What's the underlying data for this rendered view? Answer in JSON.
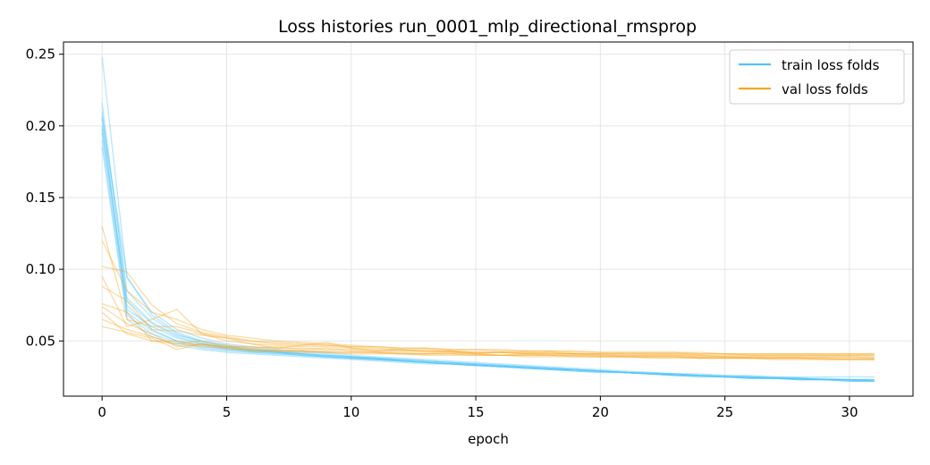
{
  "chart_data": {
    "type": "line",
    "title": "Loss histories run_0001_mlp_directional_rmsprop",
    "xlabel": "epoch",
    "ylabel": "",
    "xlim": [
      -1.55,
      32.55
    ],
    "ylim": [
      0.0115,
      0.2585
    ],
    "xticks": [
      0,
      5,
      10,
      15,
      20,
      25,
      30
    ],
    "yticks": [
      0.05,
      0.1,
      0.15,
      0.2,
      0.25
    ],
    "xtick_labels": [
      "0",
      "5",
      "10",
      "15",
      "20",
      "25",
      "30"
    ],
    "ytick_labels": [
      "0.05",
      "0.10",
      "0.15",
      "0.20",
      "0.25"
    ],
    "grid": true,
    "legend_position": "top-right",
    "colors": {
      "train": "#4fc3f7",
      "val": "#f5a623"
    },
    "legend": [
      {
        "label": "train loss folds",
        "group": "train"
      },
      {
        "label": "val loss folds",
        "group": "val"
      }
    ],
    "train_folds": [
      [
        0.248,
        0.094,
        0.07,
        0.058,
        0.052,
        0.048,
        0.046,
        0.044,
        0.043,
        0.042,
        0.04,
        0.039,
        0.038,
        0.037,
        0.036,
        0.035,
        0.034,
        0.033,
        0.032,
        0.031,
        0.03,
        0.029,
        0.028,
        0.027,
        0.027,
        0.026,
        0.026,
        0.025,
        0.025,
        0.025,
        0.025,
        0.025
      ],
      [
        0.216,
        0.08,
        0.063,
        0.054,
        0.05,
        0.047,
        0.045,
        0.043,
        0.042,
        0.041,
        0.039,
        0.038,
        0.037,
        0.036,
        0.035,
        0.034,
        0.033,
        0.032,
        0.031,
        0.03,
        0.029,
        0.028,
        0.028,
        0.027,
        0.026,
        0.026,
        0.025,
        0.025,
        0.024,
        0.024,
        0.023,
        0.023
      ],
      [
        0.205,
        0.095,
        0.068,
        0.056,
        0.05,
        0.046,
        0.044,
        0.043,
        0.041,
        0.04,
        0.039,
        0.038,
        0.037,
        0.036,
        0.035,
        0.034,
        0.033,
        0.032,
        0.031,
        0.03,
        0.029,
        0.028,
        0.027,
        0.027,
        0.026,
        0.025,
        0.025,
        0.024,
        0.024,
        0.023,
        0.023,
        0.023
      ],
      [
        0.2,
        0.075,
        0.058,
        0.05,
        0.046,
        0.044,
        0.043,
        0.042,
        0.041,
        0.04,
        0.039,
        0.038,
        0.037,
        0.036,
        0.035,
        0.034,
        0.033,
        0.032,
        0.031,
        0.03,
        0.029,
        0.028,
        0.027,
        0.027,
        0.026,
        0.025,
        0.025,
        0.024,
        0.024,
        0.023,
        0.023,
        0.022
      ],
      [
        0.195,
        0.072,
        0.06,
        0.052,
        0.048,
        0.045,
        0.043,
        0.042,
        0.041,
        0.039,
        0.038,
        0.037,
        0.036,
        0.035,
        0.034,
        0.033,
        0.032,
        0.031,
        0.031,
        0.03,
        0.029,
        0.028,
        0.027,
        0.026,
        0.026,
        0.025,
        0.024,
        0.024,
        0.023,
        0.023,
        0.022,
        0.022
      ],
      [
        0.19,
        0.068,
        0.055,
        0.049,
        0.045,
        0.043,
        0.042,
        0.041,
        0.04,
        0.039,
        0.038,
        0.037,
        0.036,
        0.035,
        0.034,
        0.033,
        0.032,
        0.031,
        0.03,
        0.029,
        0.028,
        0.028,
        0.027,
        0.026,
        0.025,
        0.025,
        0.024,
        0.024,
        0.023,
        0.023,
        0.022,
        0.022
      ],
      [
        0.185,
        0.065,
        0.053,
        0.047,
        0.044,
        0.042,
        0.041,
        0.04,
        0.039,
        0.038,
        0.037,
        0.036,
        0.035,
        0.034,
        0.034,
        0.033,
        0.032,
        0.031,
        0.03,
        0.029,
        0.029,
        0.028,
        0.027,
        0.026,
        0.026,
        0.025,
        0.024,
        0.024,
        0.023,
        0.023,
        0.022,
        0.022
      ],
      [
        0.21,
        0.085,
        0.066,
        0.055,
        0.049,
        0.046,
        0.044,
        0.042,
        0.041,
        0.04,
        0.039,
        0.038,
        0.036,
        0.035,
        0.034,
        0.033,
        0.032,
        0.031,
        0.03,
        0.03,
        0.029,
        0.028,
        0.027,
        0.026,
        0.026,
        0.025,
        0.025,
        0.024,
        0.024,
        0.023,
        0.023,
        0.023
      ],
      [
        0.198,
        0.078,
        0.062,
        0.053,
        0.048,
        0.045,
        0.043,
        0.042,
        0.04,
        0.039,
        0.038,
        0.037,
        0.036,
        0.035,
        0.034,
        0.033,
        0.032,
        0.032,
        0.031,
        0.03,
        0.029,
        0.028,
        0.027,
        0.027,
        0.026,
        0.025,
        0.025,
        0.024,
        0.024,
        0.023,
        0.023,
        0.022
      ],
      [
        0.207,
        0.07,
        0.057,
        0.05,
        0.047,
        0.044,
        0.042,
        0.041,
        0.04,
        0.039,
        0.038,
        0.037,
        0.036,
        0.035,
        0.034,
        0.033,
        0.032,
        0.031,
        0.03,
        0.029,
        0.028,
        0.028,
        0.027,
        0.026,
        0.025,
        0.025,
        0.024,
        0.024,
        0.023,
        0.023,
        0.023,
        0.022
      ]
    ],
    "val_folds": [
      [
        0.13,
        0.065,
        0.06,
        0.06,
        0.055,
        0.052,
        0.05,
        0.048,
        0.047,
        0.047,
        0.046,
        0.045,
        0.044,
        0.044,
        0.043,
        0.042,
        0.042,
        0.042,
        0.041,
        0.041,
        0.041,
        0.041,
        0.041,
        0.041,
        0.041,
        0.041,
        0.04,
        0.04,
        0.04,
        0.04,
        0.04,
        0.04
      ],
      [
        0.12,
        0.085,
        0.07,
        0.065,
        0.058,
        0.054,
        0.052,
        0.05,
        0.049,
        0.048,
        0.047,
        0.046,
        0.045,
        0.045,
        0.044,
        0.044,
        0.043,
        0.043,
        0.043,
        0.042,
        0.042,
        0.042,
        0.042,
        0.042,
        0.041,
        0.041,
        0.041,
        0.041,
        0.041,
        0.041,
        0.041,
        0.041
      ],
      [
        0.102,
        0.098,
        0.075,
        0.062,
        0.056,
        0.053,
        0.05,
        0.049,
        0.048,
        0.047,
        0.046,
        0.046,
        0.045,
        0.045,
        0.044,
        0.044,
        0.044,
        0.043,
        0.043,
        0.043,
        0.042,
        0.042,
        0.042,
        0.042,
        0.042,
        0.041,
        0.041,
        0.041,
        0.041,
        0.041,
        0.041,
        0.041
      ],
      [
        0.095,
        0.06,
        0.065,
        0.072,
        0.055,
        0.05,
        0.048,
        0.047,
        0.046,
        0.046,
        0.045,
        0.044,
        0.044,
        0.043,
        0.043,
        0.042,
        0.042,
        0.042,
        0.042,
        0.041,
        0.041,
        0.041,
        0.041,
        0.041,
        0.04,
        0.04,
        0.04,
        0.04,
        0.04,
        0.04,
        0.04,
        0.04
      ],
      [
        0.088,
        0.078,
        0.058,
        0.057,
        0.054,
        0.052,
        0.048,
        0.045,
        0.047,
        0.049,
        0.045,
        0.043,
        0.044,
        0.042,
        0.043,
        0.041,
        0.042,
        0.041,
        0.042,
        0.041,
        0.04,
        0.04,
        0.04,
        0.04,
        0.039,
        0.039,
        0.039,
        0.039,
        0.039,
        0.039,
        0.039,
        0.039
      ],
      [
        0.076,
        0.07,
        0.05,
        0.048,
        0.05,
        0.047,
        0.045,
        0.046,
        0.044,
        0.045,
        0.043,
        0.042,
        0.042,
        0.041,
        0.042,
        0.041,
        0.04,
        0.041,
        0.04,
        0.04,
        0.04,
        0.039,
        0.039,
        0.039,
        0.039,
        0.039,
        0.038,
        0.038,
        0.038,
        0.038,
        0.038,
        0.038
      ],
      [
        0.074,
        0.062,
        0.055,
        0.046,
        0.048,
        0.046,
        0.046,
        0.045,
        0.045,
        0.044,
        0.044,
        0.043,
        0.043,
        0.043,
        0.042,
        0.042,
        0.042,
        0.041,
        0.041,
        0.041,
        0.041,
        0.04,
        0.04,
        0.04,
        0.04,
        0.039,
        0.039,
        0.039,
        0.039,
        0.039,
        0.039,
        0.038
      ],
      [
        0.07,
        0.055,
        0.05,
        0.05,
        0.047,
        0.046,
        0.044,
        0.044,
        0.043,
        0.043,
        0.042,
        0.042,
        0.041,
        0.041,
        0.041,
        0.041,
        0.04,
        0.04,
        0.04,
        0.04,
        0.039,
        0.039,
        0.039,
        0.039,
        0.038,
        0.038,
        0.038,
        0.038,
        0.038,
        0.037,
        0.037,
        0.037
      ],
      [
        0.065,
        0.058,
        0.053,
        0.048,
        0.046,
        0.045,
        0.044,
        0.043,
        0.043,
        0.042,
        0.042,
        0.042,
        0.041,
        0.041,
        0.041,
        0.04,
        0.04,
        0.04,
        0.04,
        0.039,
        0.039,
        0.039,
        0.039,
        0.039,
        0.038,
        0.038,
        0.038,
        0.038,
        0.038,
        0.038,
        0.037,
        0.037
      ],
      [
        0.06,
        0.056,
        0.052,
        0.044,
        0.048,
        0.045,
        0.043,
        0.043,
        0.042,
        0.042,
        0.041,
        0.041,
        0.041,
        0.04,
        0.04,
        0.04,
        0.04,
        0.039,
        0.039,
        0.039,
        0.039,
        0.039,
        0.038,
        0.038,
        0.038,
        0.038,
        0.038,
        0.037,
        0.037,
        0.037,
        0.037,
        0.037
      ]
    ]
  }
}
